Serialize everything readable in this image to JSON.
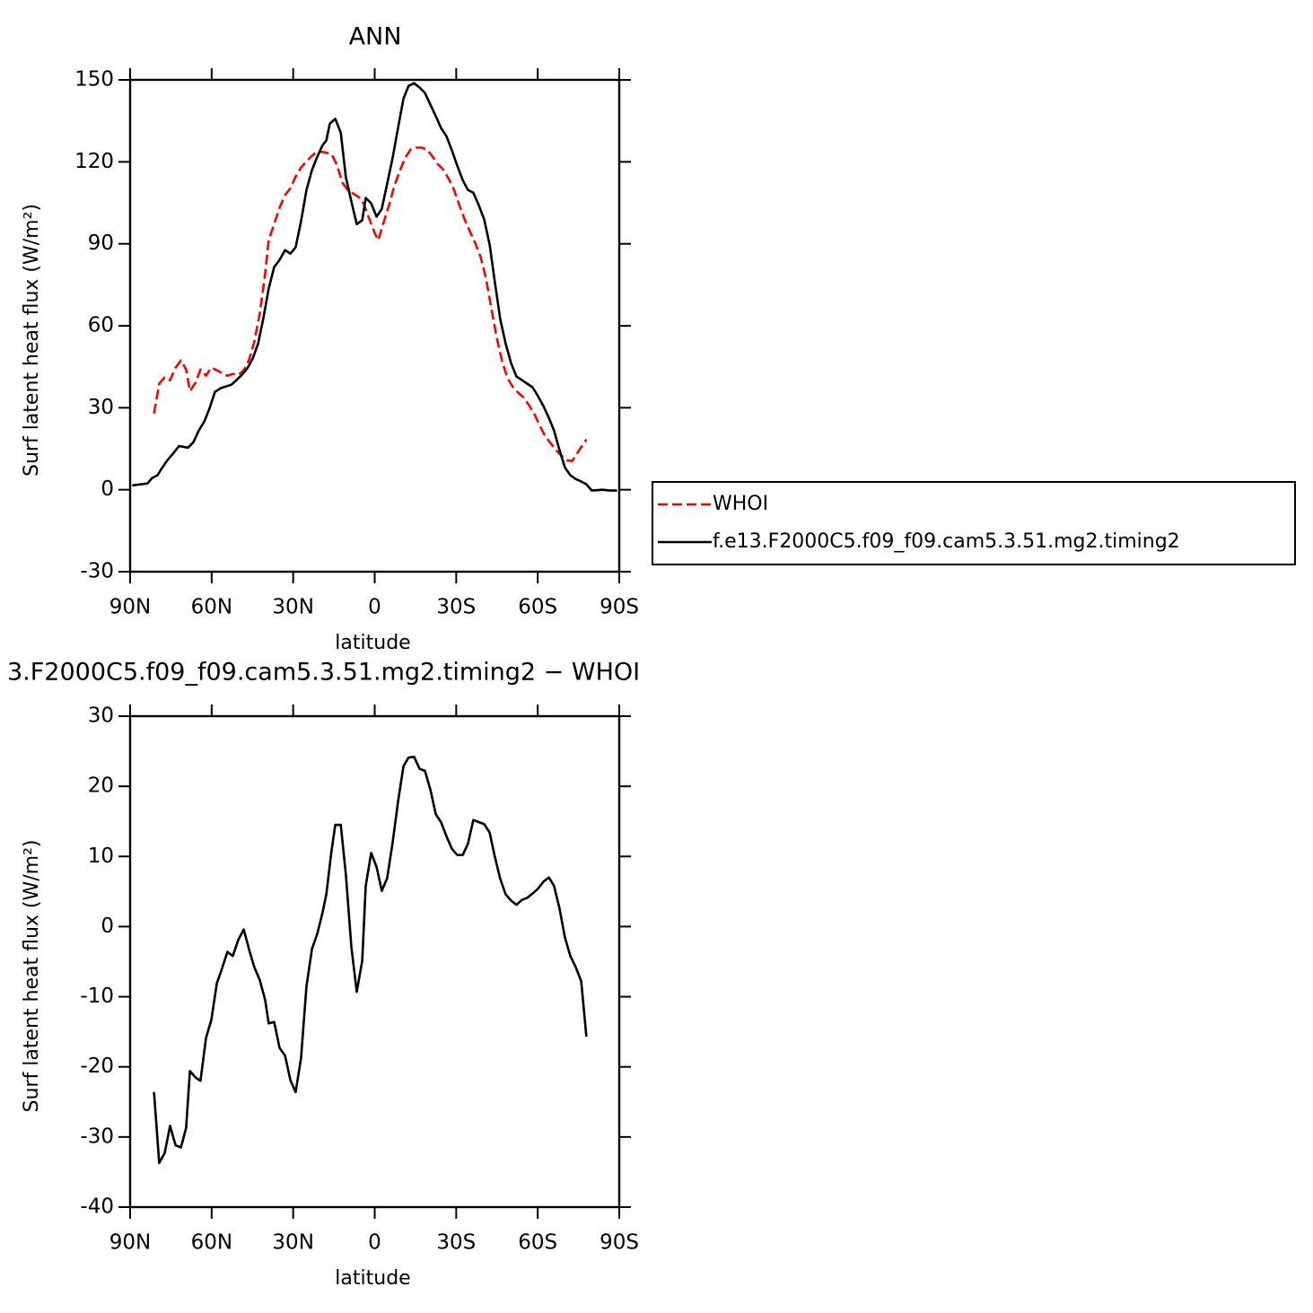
{
  "chart_data": [
    {
      "type": "line",
      "title": "ANN",
      "xlabel": "latitude",
      "ylabel": "Surf latent heat flux (W/m²)",
      "xlim": [
        90,
        -90
      ],
      "xticks": [
        {
          "value": 90,
          "label": "90N"
        },
        {
          "value": 60,
          "label": "60N"
        },
        {
          "value": 30,
          "label": "30N"
        },
        0,
        {
          "value": -30,
          "label": "30S"
        },
        {
          "value": -60,
          "label": "60S"
        },
        {
          "value": -90,
          "label": "90S"
        }
      ],
      "ylim": [
        -30,
        150
      ],
      "yticks": [
        -30,
        0,
        30,
        60,
        90,
        120,
        150
      ],
      "legend": "right",
      "series": [
        {
          "name": "WHOI",
          "color": "#ff0000",
          "line_style": "dashed",
          "x": [
            81.2,
            79.3,
            77.3,
            75.3,
            73.3,
            71.3,
            69.4,
            68,
            66,
            64.1,
            62.1,
            60.1,
            58.1,
            56.1,
            54.2,
            52.2,
            50.2,
            48.2,
            46.2,
            44.3,
            42.3,
            40.3,
            39,
            37,
            35,
            33,
            31,
            29.1,
            27.1,
            25.1,
            23.1,
            21.1,
            18.5,
            15.9,
            13.9,
            11.9,
            9.9,
            7.9,
            5.9,
            4,
            2,
            0,
            -1.3,
            -3.3,
            -5.3,
            -7.3,
            -9.2,
            -11.2,
            -13.2,
            -15.2,
            -17.2,
            -19.2,
            -21.1,
            -23.1,
            -25.1,
            -27.1,
            -29.1,
            -31,
            -33,
            -35,
            -37,
            -39,
            -41,
            -43,
            -44.9,
            -46.9,
            -48.9,
            -50.9,
            -52.8,
            -54.8,
            -56.8,
            -58.8,
            -60.8,
            -62.7,
            -64.7,
            -66.7,
            -68.7,
            -70.7,
            -72.7,
            -74.6,
            -77.9
          ],
          "values": [
            27.9,
            38.8,
            41.1,
            40.1,
            44.7,
            47.3,
            44,
            36.1,
            39.1,
            44,
            41.7,
            44.7,
            43.7,
            42.7,
            41.7,
            42.4,
            42,
            43.7,
            47.6,
            54.2,
            64.4,
            79.2,
            91.3,
            97.2,
            103.2,
            107.8,
            110.4,
            114.6,
            117.9,
            120.2,
            122.2,
            123.9,
            123.5,
            122.9,
            118.9,
            112.4,
            109.7,
            108.4,
            107.1,
            104.5,
            99.2,
            94,
            91.3,
            97.9,
            104.1,
            111.4,
            116.6,
            121.5,
            124.5,
            125.2,
            125.2,
            124.5,
            122.2,
            119.3,
            117.3,
            114,
            110,
            104.5,
            99.2,
            94.6,
            90.3,
            85.1,
            77.2,
            66,
            55.8,
            47,
            40.7,
            37.5,
            35.5,
            33.8,
            30.9,
            27.6,
            23.3,
            19.7,
            17.1,
            14.5,
            12.5,
            10.8,
            10.5,
            13.5,
            18.4
          ]
        },
        {
          "name": "f.e13.F2000C5.f09_f09.cam5.3.51.mg2.timing2",
          "color": "#000000",
          "line_style": "solid",
          "x": [
            89.2,
            83.6,
            81.9,
            79.9,
            78.3,
            76.3,
            74.3,
            72,
            68.7,
            66.7,
            64.7,
            62.7,
            60.7,
            58.8,
            56.8,
            54.8,
            52.8,
            50.9,
            48.9,
            46.9,
            44.9,
            42.9,
            41,
            39,
            37,
            35,
            33,
            31,
            29.1,
            27.1,
            25.1,
            23.1,
            21.1,
            19.2,
            17.8,
            16.5,
            14.5,
            12.5,
            10.6,
            8.6,
            6.6,
            4.6,
            3.3,
            1.3,
            -0.7,
            -2.6,
            -4.6,
            -6.6,
            -8.6,
            -10.6,
            -12.5,
            -14.5,
            -16.5,
            -18.5,
            -20.5,
            -22.5,
            -24.4,
            -26.4,
            -28.4,
            -30.4,
            -32.4,
            -34.3,
            -36.3,
            -38.3,
            -40.3,
            -42.3,
            -44.2,
            -46.2,
            -48.2,
            -50.2,
            -52.2,
            -54.2,
            -56.1,
            -58.1,
            -60.1,
            -62.1,
            -64.1,
            -66,
            -68,
            -70,
            -72,
            -74,
            -76,
            -77.9,
            -79.9,
            -83.9,
            -86.5,
            -89.2
          ],
          "values": [
            1.6,
            2.3,
            4.3,
            5.3,
            7.9,
            10.8,
            13.1,
            16,
            15.4,
            17.4,
            21.7,
            25,
            30,
            35.8,
            37.1,
            37.8,
            38.4,
            40.1,
            42,
            44.4,
            48,
            53.5,
            62.7,
            73.6,
            81.5,
            84.1,
            87.7,
            86.4,
            88.7,
            98.2,
            109.7,
            117,
            121.9,
            126.1,
            127.8,
            134,
            135.7,
            130.7,
            114.3,
            105.5,
            97.2,
            98.6,
            106.8,
            104.8,
            99.9,
            102.8,
            112,
            121.5,
            132.4,
            143.2,
            147.8,
            148.8,
            147.2,
            145.2,
            140.9,
            136.7,
            132.4,
            129.4,
            124.2,
            118.6,
            113.3,
            109.7,
            108.7,
            104.1,
            98.9,
            89.7,
            76.2,
            62.4,
            53.5,
            46.3,
            41.4,
            40.1,
            38.8,
            37.5,
            34.2,
            30.6,
            26.3,
            21.7,
            14.5,
            8.2,
            5.3,
            3.9,
            3,
            2,
            -0.3,
            0,
            -0.3,
            -0.3
          ]
        }
      ]
    },
    {
      "type": "line",
      "title": "3.F2000C5.f09_f09.cam5.3.51.mg2.timing2 − WHOI",
      "xlabel": "latitude",
      "ylabel": "Surf latent heat flux (W/m²)",
      "xlim": [
        90,
        -90
      ],
      "xticks": [
        {
          "value": 90,
          "label": "90N"
        },
        {
          "value": 60,
          "label": "60N"
        },
        {
          "value": 30,
          "label": "30N"
        },
        0,
        {
          "value": -30,
          "label": "30S"
        },
        {
          "value": -60,
          "label": "60S"
        },
        {
          "value": -90,
          "label": "90S"
        }
      ],
      "ylim": [
        -40,
        30
      ],
      "yticks": [
        -40,
        -30,
        -20,
        -10,
        0,
        10,
        20,
        30
      ],
      "series": [
        {
          "color": "#000000",
          "line_style": "solid",
          "x": [
            81.2,
            79.3,
            77.3,
            75.3,
            73.3,
            71.3,
            69.4,
            68,
            66,
            64.1,
            62.1,
            60.1,
            58.1,
            56.1,
            54.2,
            52.2,
            50.2,
            48.2,
            46.2,
            44.3,
            42.3,
            40.3,
            39,
            37,
            35,
            33,
            31,
            29.1,
            27.1,
            25.1,
            23.1,
            21.1,
            19.2,
            17.8,
            15.9,
            14.5,
            12.5,
            10.6,
            8.6,
            6.6,
            4.6,
            3.3,
            1.3,
            -0.7,
            -2.6,
            -4.6,
            -6.6,
            -8.6,
            -10.6,
            -12.5,
            -14.5,
            -16.5,
            -18.5,
            -20.5,
            -22.5,
            -24.4,
            -26.4,
            -28.4,
            -30.4,
            -32.4,
            -34.3,
            -36.3,
            -38.3,
            -40.3,
            -42.3,
            -44.2,
            -46.2,
            -48.2,
            -50.2,
            -52.2,
            -54.2,
            -56.1,
            -58.1,
            -60.1,
            -62.1,
            -64.1,
            -66,
            -68,
            -70,
            -72,
            -74,
            -76,
            -77.9
          ],
          "values": [
            -23.6,
            -33.7,
            -32.3,
            -28.4,
            -31.2,
            -31.5,
            -28.7,
            -20.6,
            -21.5,
            -22,
            -15.9,
            -13.3,
            -8.1,
            -5.9,
            -3.6,
            -4.2,
            -1.9,
            -0.4,
            -3.3,
            -5.8,
            -7.6,
            -10.5,
            -13.8,
            -13.6,
            -17.3,
            -18.4,
            -21.9,
            -23.6,
            -18.8,
            -8.5,
            -3.2,
            -1,
            2,
            4.6,
            10.8,
            14.5,
            14.5,
            7.4,
            -2.9,
            -9.3,
            -4.9,
            5.8,
            10.5,
            8.5,
            5.1,
            6.9,
            12,
            17.8,
            22.9,
            24.1,
            24.2,
            22.5,
            22.2,
            19.5,
            16,
            14.9,
            12.9,
            11.1,
            10.2,
            10.2,
            11.8,
            15.2,
            14.9,
            14.6,
            13.4,
            10,
            6.8,
            4.6,
            3.7,
            3.1,
            3.8,
            4.1,
            4.7,
            5.4,
            6.4,
            7,
            5.8,
            2.6,
            -1.5,
            -4.2,
            -5.8,
            -7.8,
            -15.7
          ]
        }
      ]
    }
  ]
}
